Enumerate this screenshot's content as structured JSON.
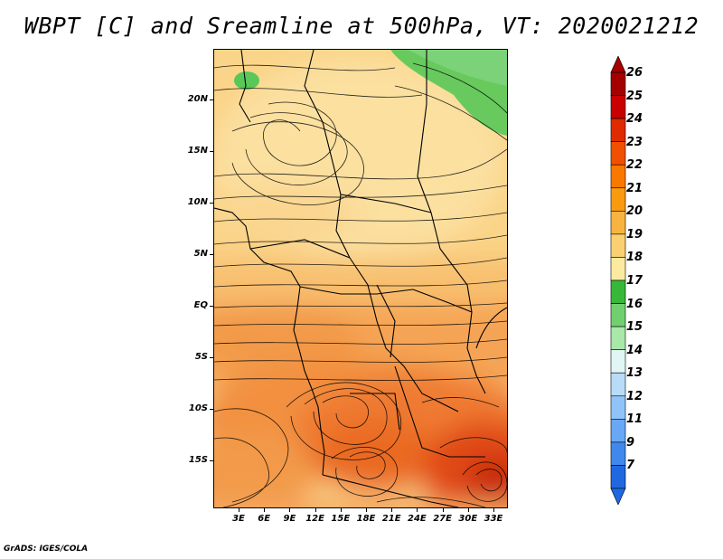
{
  "title": "WBPT [C] and Sreamline at 500hPa, VT: 2020021212",
  "footer": "GrADS: IGES/COLA",
  "map": {
    "variable": "WBPT",
    "units": "C",
    "level": "500hPa",
    "valid_time": "2020021212",
    "lat_labels": [
      "20N",
      "15N",
      "10N",
      "5N",
      "EQ",
      "5S",
      "10S",
      "15S"
    ],
    "lon_labels": [
      "3E",
      "6E",
      "9E",
      "12E",
      "15E",
      "18E",
      "21E",
      "24E",
      "27E",
      "30E",
      "33E"
    ]
  },
  "colorbar": {
    "labels": [
      "26",
      "25",
      "24",
      "23",
      "22",
      "21",
      "20",
      "19",
      "18",
      "17",
      "16",
      "15",
      "14",
      "13",
      "12",
      "11",
      "9",
      "7"
    ],
    "colors": [
      "#a50000",
      "#c80000",
      "#e02a00",
      "#f05000",
      "#f87800",
      "#fa9a10",
      "#f8b440",
      "#fad070",
      "#fceaa0",
      "#38b838",
      "#70d070",
      "#a8e8a8",
      "#e0f6f4",
      "#b8dcf8",
      "#90c4f8",
      "#68a8f4",
      "#4088ec",
      "#2068e0"
    ]
  }
}
